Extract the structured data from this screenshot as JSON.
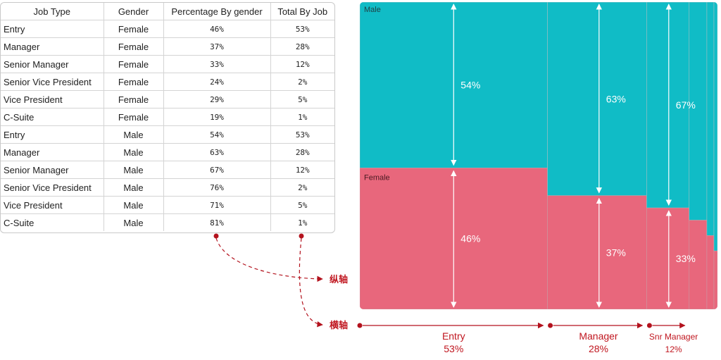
{
  "table": {
    "headers": [
      "Job Type",
      "Gender",
      "Percentage By gender",
      "Total By Job"
    ],
    "rows": [
      [
        "Entry",
        "Female",
        "46%",
        "53%"
      ],
      [
        "Manager",
        "Female",
        "37%",
        "28%"
      ],
      [
        "Senior Manager",
        "Female",
        "33%",
        "12%"
      ],
      [
        "Senior Vice President",
        "Female",
        "24%",
        "2%"
      ],
      [
        "Vice President",
        "Female",
        "29%",
        "5%"
      ],
      [
        "C-Suite",
        "Female",
        "19%",
        "1%"
      ],
      [
        "Entry",
        "Male",
        "54%",
        "53%"
      ],
      [
        "Manager",
        "Male",
        "63%",
        "28%"
      ],
      [
        "Senior Manager",
        "Male",
        "67%",
        "12%"
      ],
      [
        "Senior Vice President",
        "Male",
        "76%",
        "2%"
      ],
      [
        "Vice President",
        "Male",
        "71%",
        "5%"
      ],
      [
        "C-Suite",
        "Male",
        "81%",
        "1%"
      ]
    ]
  },
  "chart_data": {
    "type": "mekko",
    "series": [
      {
        "name": "Male",
        "color": "#10bcc6"
      },
      {
        "name": "Female",
        "color": "#e8677c"
      }
    ],
    "categories": [
      {
        "label": "Entry",
        "width": 53,
        "female": 46,
        "male": 54,
        "axis_label": "Entry",
        "axis_value": "53%",
        "show_labels": true
      },
      {
        "label": "Manager",
        "width": 28,
        "female": 37,
        "male": 63,
        "axis_label": "Manager",
        "axis_value": "28%",
        "show_labels": true
      },
      {
        "label": "Senior Manager",
        "width": 12,
        "female": 33,
        "male": 67,
        "axis_label": "Snr Manager",
        "axis_value": "12%",
        "show_labels": true
      },
      {
        "label": "Vice President",
        "width": 5,
        "female": 29,
        "male": 71,
        "show_labels": false
      },
      {
        "label": "Senior Vice President",
        "width": 2,
        "female": 24,
        "male": 76,
        "show_labels": false
      },
      {
        "label": "C-Suite",
        "width": 1,
        "female": 19,
        "male": 81,
        "show_labels": false
      }
    ]
  },
  "annotations": {
    "vertical_axis": "纵轴",
    "horizontal_axis": "横轴",
    "color": "#c0161f"
  }
}
